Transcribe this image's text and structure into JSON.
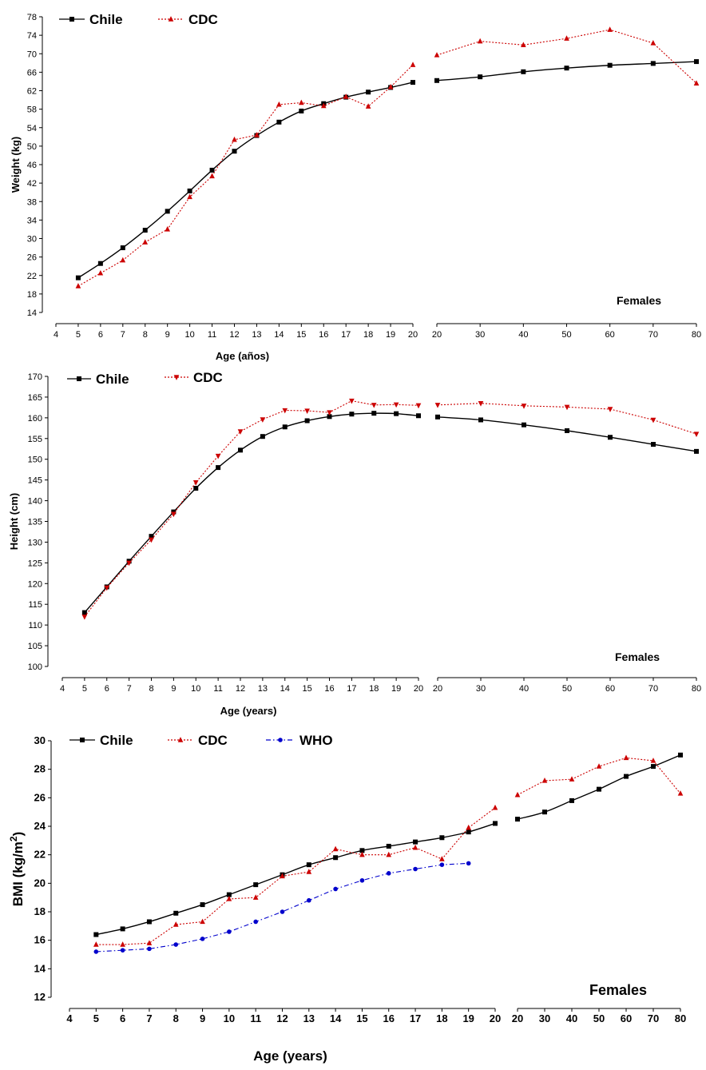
{
  "chart_data": [
    {
      "id": "weight",
      "type": "line",
      "ylabel": "Weight (kg)",
      "xlabel": "Age (años)",
      "annotation": "Females",
      "ylim": [
        14,
        78
      ],
      "yticks": [
        14,
        18,
        22,
        26,
        30,
        34,
        38,
        42,
        46,
        50,
        54,
        58,
        62,
        66,
        70,
        74,
        78
      ],
      "left_panel": {
        "xlim": [
          4,
          20
        ],
        "xticks": [
          4,
          5,
          6,
          7,
          8,
          9,
          10,
          11,
          12,
          13,
          14,
          15,
          16,
          17,
          18,
          19,
          20
        ]
      },
      "right_panel": {
        "xlim": [
          20,
          80
        ],
        "xticks": [
          20,
          30,
          40,
          50,
          60,
          70,
          80
        ]
      },
      "series": [
        {
          "name": "Chile",
          "color": "#000000",
          "marker": "square",
          "style": "solid",
          "left": {
            "x": [
              5,
              6,
              7,
              8,
              9,
              10,
              11,
              12,
              13,
              14,
              15,
              16,
              17,
              18,
              19,
              20
            ],
            "y": [
              21.5,
              24.6,
              28.0,
              31.8,
              35.9,
              40.3,
              44.8,
              48.9,
              52.3,
              55.2,
              57.6,
              59.2,
              60.6,
              61.7,
              62.7,
              63.8
            ]
          },
          "right": {
            "x": [
              20,
              30,
              40,
              50,
              60,
              70,
              80
            ],
            "y": [
              64.2,
              65.0,
              66.1,
              66.9,
              67.5,
              67.9,
              68.3
            ]
          }
        },
        {
          "name": "CDC",
          "color": "#cc0000",
          "marker": "triangle-up",
          "style": "dotted",
          "left": {
            "x": [
              5,
              6,
              7,
              8,
              9,
              10,
              11,
              12,
              13,
              14,
              15,
              16,
              17,
              18,
              19,
              20
            ],
            "y": [
              19.7,
              22.5,
              25.3,
              29.2,
              32.0,
              39.0,
              43.5,
              51.4,
              52.4,
              59.0,
              59.4,
              58.7,
              60.7,
              58.6,
              62.8,
              67.6
            ]
          },
          "right": {
            "x": [
              20,
              30,
              40,
              50,
              60,
              70,
              80
            ],
            "y": [
              69.7,
              72.7,
              71.9,
              73.3,
              75.2,
              72.3,
              63.6
            ]
          }
        }
      ]
    },
    {
      "id": "height",
      "type": "line",
      "ylabel": "Height (cm)",
      "xlabel": "Age (years)",
      "annotation": "Females",
      "ylim": [
        100,
        170
      ],
      "yticks": [
        100,
        105,
        110,
        115,
        120,
        125,
        130,
        135,
        140,
        145,
        150,
        155,
        160,
        165,
        170
      ],
      "left_panel": {
        "xlim": [
          4,
          20
        ],
        "xticks": [
          4,
          5,
          6,
          7,
          8,
          9,
          10,
          11,
          12,
          13,
          14,
          15,
          16,
          17,
          18,
          19,
          20
        ]
      },
      "right_panel": {
        "xlim": [
          20,
          80
        ],
        "xticks": [
          20,
          30,
          40,
          50,
          60,
          70,
          80
        ]
      },
      "series": [
        {
          "name": "Chile",
          "color": "#000000",
          "marker": "square",
          "style": "solid",
          "left": {
            "x": [
              5,
              6,
              7,
              8,
              9,
              10,
              11,
              12,
              13,
              14,
              15,
              16,
              17,
              18,
              19,
              20
            ],
            "y": [
              113.0,
              119.2,
              125.4,
              131.4,
              137.3,
              143.0,
              148.0,
              152.2,
              155.5,
              157.8,
              159.3,
              160.3,
              160.9,
              161.1,
              161.0,
              160.5
            ]
          },
          "right": {
            "x": [
              20,
              30,
              40,
              50,
              60,
              70,
              80
            ],
            "y": [
              160.2,
              159.5,
              158.3,
              156.9,
              155.3,
              153.6,
              151.9
            ]
          }
        },
        {
          "name": "CDC",
          "color": "#cc0000",
          "marker": "triangle-down",
          "style": "dotted",
          "left": {
            "x": [
              5,
              6,
              7,
              8,
              9,
              10,
              11,
              12,
              13,
              14,
              15,
              16,
              17,
              18,
              19,
              20
            ],
            "y": [
              112.0,
              119.0,
              125.0,
              130.6,
              136.8,
              144.4,
              150.8,
              156.7,
              159.6,
              161.8,
              161.7,
              161.3,
              164.1,
              163.1,
              163.2,
              163.0
            ]
          },
          "right": {
            "x": [
              20,
              30,
              40,
              50,
              60,
              70,
              80
            ],
            "y": [
              163.1,
              163.5,
              162.9,
              162.6,
              162.1,
              159.5,
              156.1
            ]
          }
        }
      ]
    },
    {
      "id": "bmi",
      "type": "line",
      "ylabel": "BMI (kg/m",
      "ylabel_sup": "2",
      "ylabel_close": ")",
      "xlabel": "Age (years)",
      "annotation": "Females",
      "ylim": [
        12,
        30
      ],
      "yticks": [
        12,
        14,
        16,
        18,
        20,
        22,
        24,
        26,
        28,
        30
      ],
      "left_panel": {
        "xlim": [
          4,
          20
        ],
        "xticks": [
          4,
          5,
          6,
          7,
          8,
          9,
          10,
          11,
          12,
          13,
          14,
          15,
          16,
          17,
          18,
          19,
          20
        ]
      },
      "right_panel": {
        "xlim": [
          20,
          80
        ],
        "xticks": [
          20,
          30,
          40,
          50,
          60,
          70,
          80
        ]
      },
      "series": [
        {
          "name": "Chile",
          "color": "#000000",
          "marker": "square",
          "style": "solid",
          "left": {
            "x": [
              5,
              6,
              7,
              8,
              9,
              10,
              11,
              12,
              13,
              14,
              15,
              16,
              17,
              18,
              19,
              20
            ],
            "y": [
              16.4,
              16.8,
              17.3,
              17.9,
              18.5,
              19.2,
              19.9,
              20.6,
              21.3,
              21.8,
              22.3,
              22.6,
              22.9,
              23.2,
              23.6,
              24.2
            ]
          },
          "right": {
            "x": [
              20,
              30,
              40,
              50,
              60,
              70,
              80
            ],
            "y": [
              24.5,
              25.0,
              25.8,
              26.6,
              27.5,
              28.2,
              29.0
            ]
          }
        },
        {
          "name": "CDC",
          "color": "#cc0000",
          "marker": "triangle-up",
          "style": "dotted",
          "left": {
            "x": [
              5,
              6,
              7,
              8,
              9,
              10,
              11,
              12,
              13,
              14,
              15,
              16,
              17,
              18,
              19,
              20
            ],
            "y": [
              15.7,
              15.7,
              15.8,
              17.1,
              17.3,
              18.9,
              19.0,
              20.5,
              20.8,
              22.4,
              22.0,
              22.0,
              22.5,
              21.7,
              23.9,
              25.3
            ]
          },
          "right": {
            "x": [
              20,
              30,
              40,
              50,
              60,
              70,
              80
            ],
            "y": [
              26.2,
              27.2,
              27.3,
              28.2,
              28.8,
              28.6,
              26.3
            ]
          }
        },
        {
          "name": "WHO",
          "color": "#0000cc",
          "marker": "circle",
          "style": "dashdot",
          "left": {
            "x": [
              5,
              6,
              7,
              8,
              9,
              10,
              11,
              12,
              13,
              14,
              15,
              16,
              17,
              18,
              19
            ],
            "y": [
              15.2,
              15.3,
              15.4,
              15.7,
              16.1,
              16.6,
              17.3,
              18.0,
              18.8,
              19.6,
              20.2,
              20.7,
              21.0,
              21.3,
              21.4
            ]
          },
          "right": null
        }
      ]
    }
  ]
}
